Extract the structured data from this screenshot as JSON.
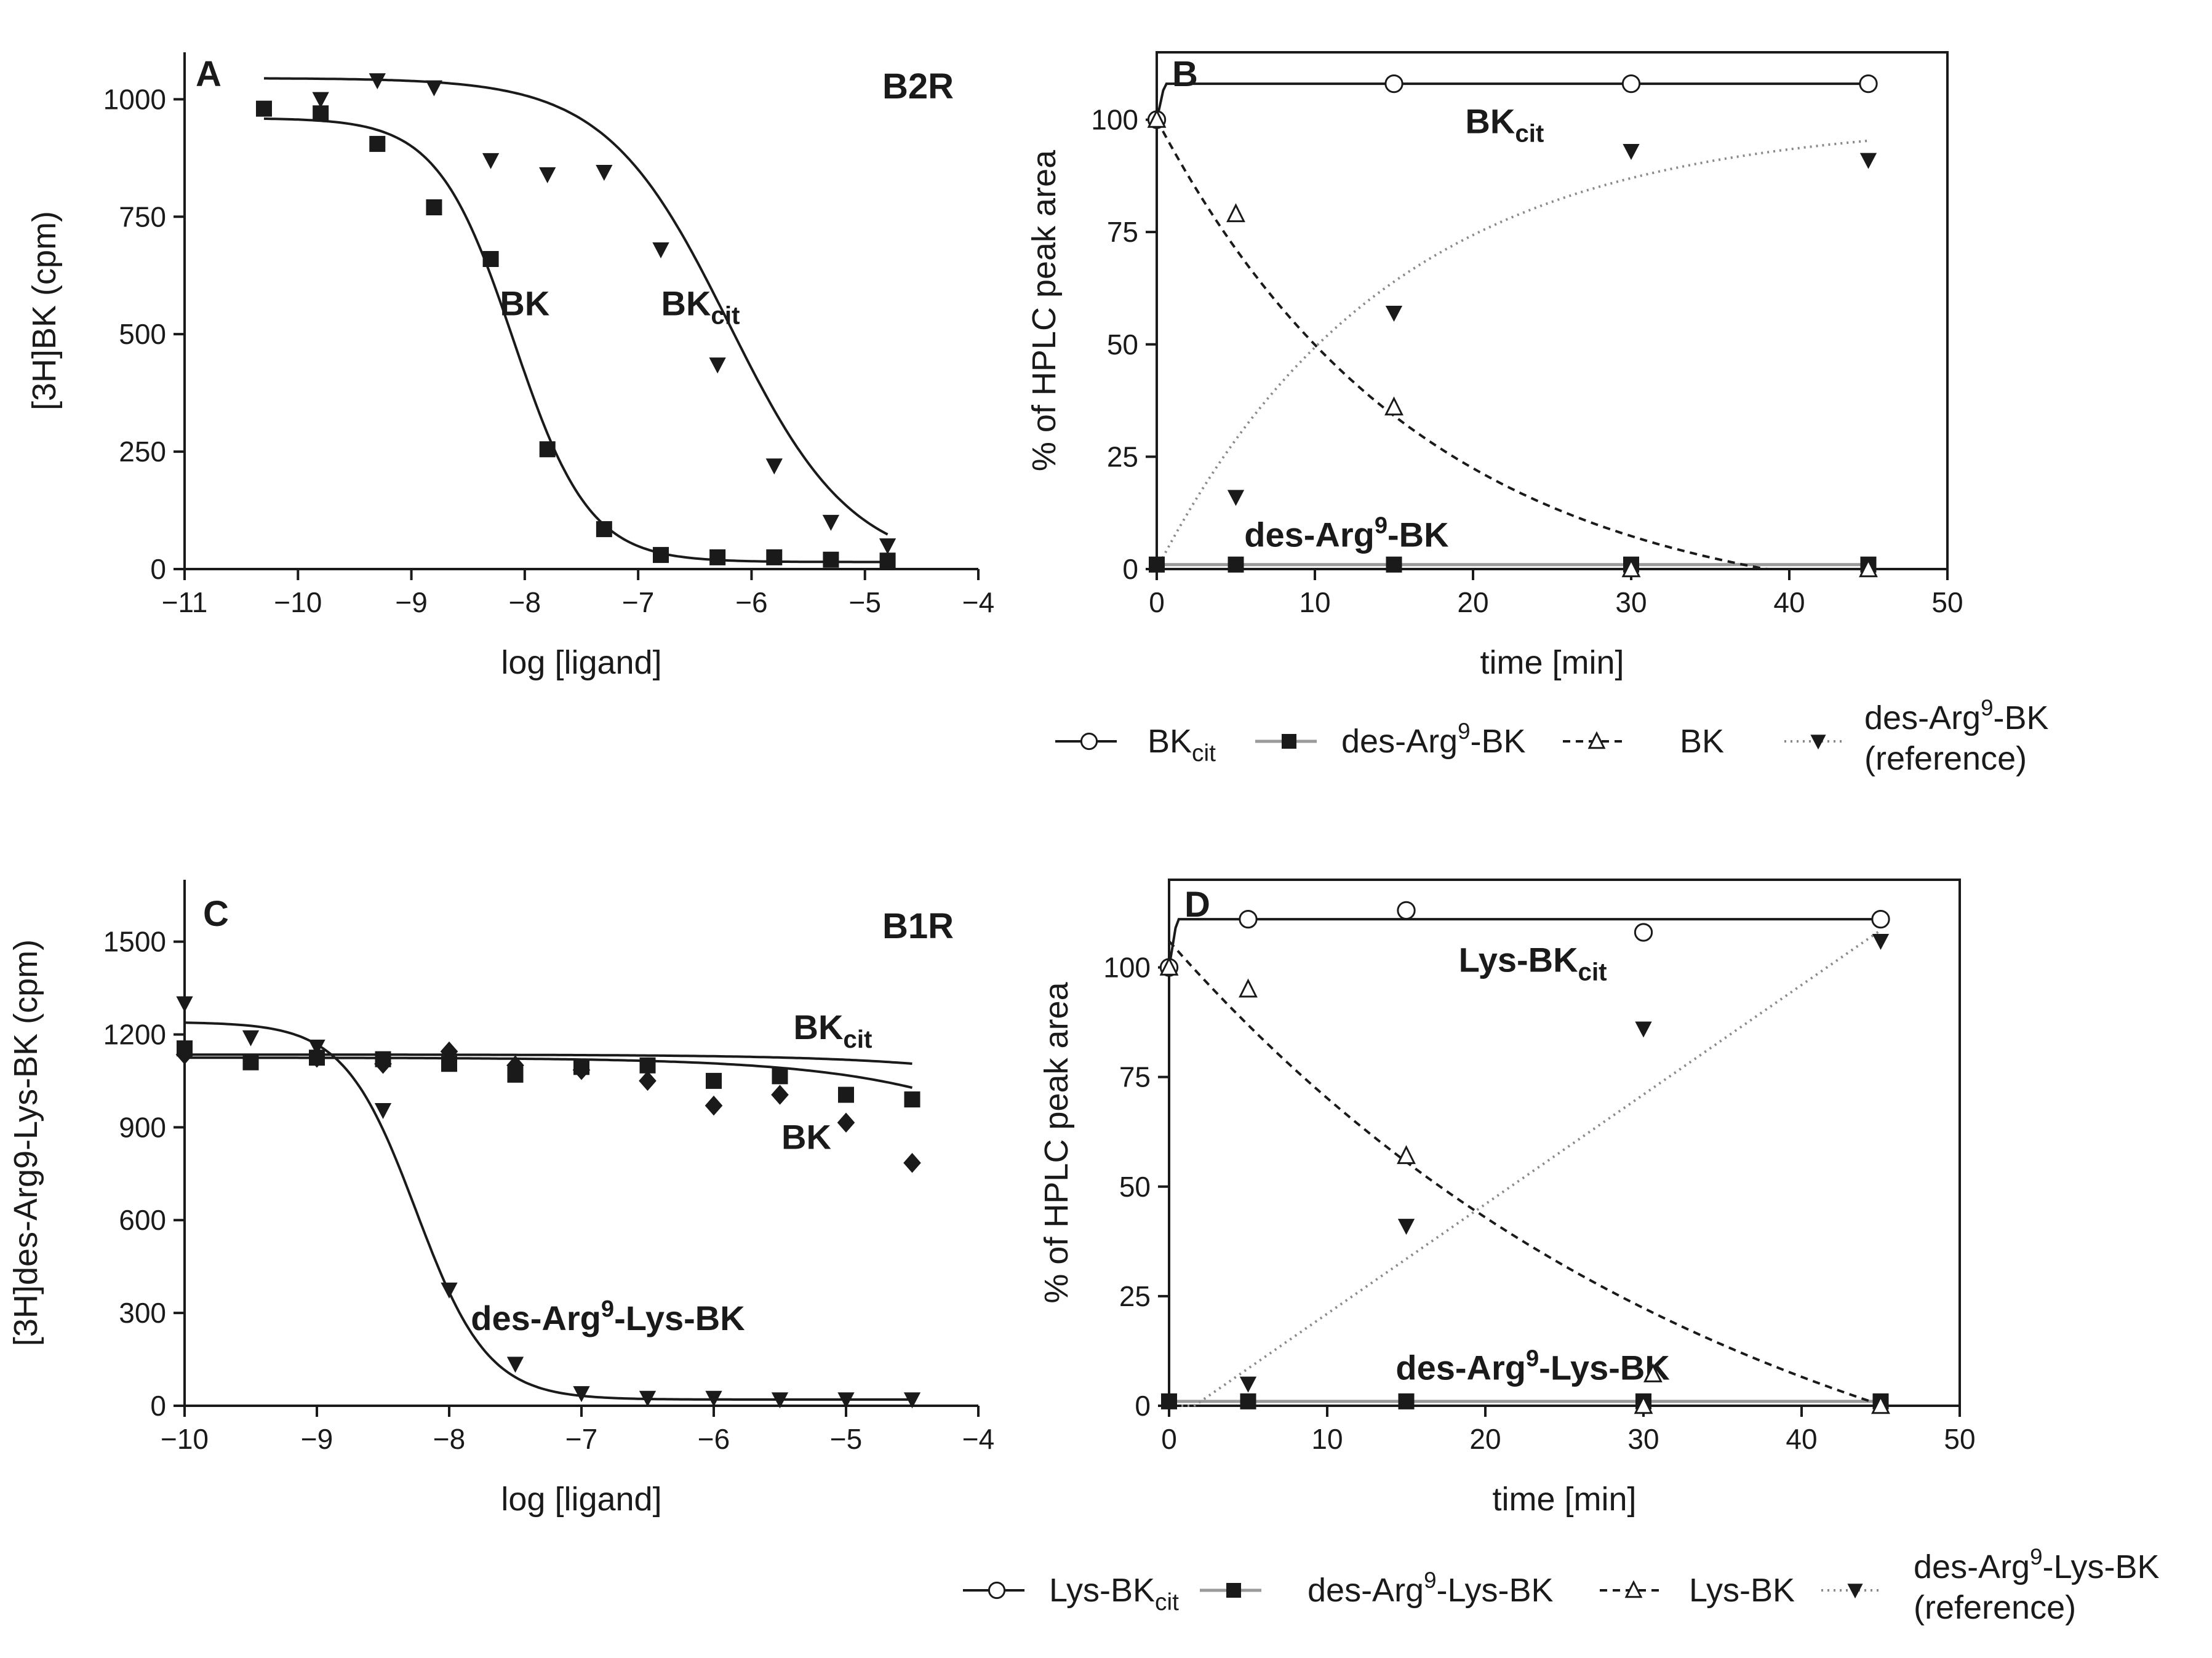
{
  "chart_data": [
    {
      "id": "A",
      "type": "scatter",
      "panel_letter": "A",
      "tag": "B2R",
      "xlabel": "log [ligand]",
      "ylabel": "[3H]BK (cpm)",
      "xlim": [
        -11,
        -4
      ],
      "ylim": [
        0,
        1100
      ],
      "xticks": [
        -11,
        -10,
        -9,
        -8,
        -7,
        -6,
        -5,
        -4
      ],
      "yticks": [
        0,
        250,
        500,
        750,
        1000
      ],
      "series": [
        {
          "name": "BK",
          "marker": "square",
          "x": [
            -10.3,
            -9.8,
            -9.3,
            -8.8,
            -8.3,
            -7.8,
            -7.3,
            -6.8,
            -6.3,
            -5.8,
            -5.3,
            -4.8
          ],
          "y": [
            980,
            970,
            905,
            770,
            660,
            255,
            85,
            30,
            25,
            25,
            20,
            18
          ],
          "fit": {
            "top": 960,
            "bottom": 15,
            "logec50": -8.1,
            "hill": 1.3,
            "from": -10.3,
            "to": -4.8
          }
        },
        {
          "name": "BKcit",
          "marker": "triangle-down",
          "x": [
            -9.8,
            -9.3,
            -8.8,
            -8.3,
            -7.8,
            -7.3,
            -6.8,
            -6.3,
            -5.8,
            -5.3,
            -4.8
          ],
          "y": [
            1000,
            1040,
            1025,
            870,
            840,
            845,
            680,
            435,
            220,
            100,
            50
          ],
          "fit": {
            "top": 1045,
            "bottom": 0,
            "logec50": -6.2,
            "hill": 0.8,
            "from": -10.3,
            "to": -4.8
          }
        }
      ],
      "annotations": [
        {
          "text": "BK",
          "sub": "",
          "x": -8.0,
          "y": 540
        },
        {
          "text": "BK",
          "sub": "cit",
          "x": -6.45,
          "y": 540
        }
      ]
    },
    {
      "id": "B",
      "type": "line",
      "panel_letter": "B",
      "xlabel": "time [min]",
      "ylabel": "% of HPLC peak area",
      "xlim": [
        0,
        50
      ],
      "ylim": [
        0,
        115
      ],
      "xticks": [
        0,
        10,
        20,
        30,
        40,
        50
      ],
      "yticks": [
        0,
        25,
        50,
        75,
        100
      ],
      "series": [
        {
          "name": "BKcit",
          "marker": "circle-open",
          "line": "solid",
          "x": [
            0,
            15,
            30,
            45
          ],
          "y": [
            100,
            108,
            108,
            108
          ],
          "fit": {
            "kind": "plateau",
            "start": 100,
            "plateau": 108,
            "rise_to": 0.5,
            "to": 45
          }
        },
        {
          "name": "des-Arg9-BK",
          "marker": "square",
          "line": "gray",
          "x": [
            0,
            5,
            15,
            30,
            45
          ],
          "y": [
            1,
            1,
            1,
            1,
            1
          ],
          "fit": {
            "kind": "flat",
            "value": 1,
            "from": 0,
            "to": 45
          }
        },
        {
          "name": "BK",
          "marker": "triangle-open",
          "line": "dashed",
          "x": [
            0,
            5,
            15,
            30,
            45
          ],
          "y": [
            100,
            79,
            36,
            0,
            0
          ],
          "fit": {
            "kind": "decay",
            "y0": 100,
            "k": 0.06,
            "floor": -11,
            "from": 0,
            "to": 45
          }
        },
        {
          "name": "des-Arg9-BK (reference)",
          "marker": "triangle-down",
          "line": "dotted",
          "x": [
            5,
            15,
            30,
            45
          ],
          "y": [
            16,
            57,
            93,
            91
          ],
          "fit": {
            "kind": "rise",
            "ymax": 100,
            "k": 0.068,
            "from": 0,
            "to": 45
          }
        }
      ],
      "annotations": [
        {
          "text": "BK",
          "sub": "cit",
          "x": 22,
          "y": 97
        },
        {
          "text": "des-Arg",
          "sup": "9",
          "tail": "-BK",
          "x": 12,
          "y": 5
        }
      ],
      "legend": [
        {
          "line": "solid",
          "marker": "circle-open",
          "label": "BK",
          "sub": "cit"
        },
        {
          "line": "gray",
          "marker": "square",
          "label": "des-Arg",
          "sup": "9",
          "tail": "-BK"
        },
        {
          "line": "dashed",
          "marker": "triangle-open",
          "label": "BK"
        },
        {
          "line": "dotted",
          "marker": "triangle-down",
          "label": "des-Arg",
          "sup": "9",
          "tail": "-BK",
          "line2": "(reference)"
        }
      ]
    },
    {
      "id": "C",
      "type": "scatter",
      "panel_letter": "C",
      "tag": "B1R",
      "xlabel": "log [ligand]",
      "ylabel": "[3H]des-Arg9-Lys-BK (cpm)",
      "xlim": [
        -10,
        -4
      ],
      "ylim": [
        0,
        1700
      ],
      "xticks": [
        -10,
        -9,
        -8,
        -7,
        -6,
        -5,
        -4
      ],
      "yticks": [
        0,
        300,
        600,
        900,
        1200,
        1500
      ],
      "series": [
        {
          "name": "BKcit",
          "marker": "square",
          "x": [
            -10,
            -9.5,
            -9,
            -8.5,
            -8,
            -7.5,
            -7,
            -6.5,
            -6,
            -5.5,
            -5,
            -4.5
          ],
          "y": [
            1155,
            1110,
            1125,
            1120,
            1105,
            1070,
            1095,
            1100,
            1050,
            1065,
            1005,
            990
          ],
          "fit": {
            "top": 1135,
            "bottom": 0,
            "logec50": -1.35,
            "hill": 0.5,
            "from": -10,
            "to": -4.5
          }
        },
        {
          "name": "BK",
          "marker": "diamond",
          "x": [
            -10,
            -9,
            -8.5,
            -8,
            -7.5,
            -7,
            -6.5,
            -6,
            -5.5,
            -5,
            -4.5
          ],
          "y": [
            1135,
            1125,
            1105,
            1145,
            1100,
            1085,
            1050,
            970,
            1005,
            915,
            785
          ],
          "fit": {
            "top": 1125,
            "bottom": 0,
            "logec50": -2.45,
            "hill": 0.5,
            "from": -10,
            "to": -4.5
          }
        },
        {
          "name": "des-Arg9-Lys-BK",
          "marker": "triangle-down",
          "x": [
            -10,
            -9.5,
            -9,
            -8.5,
            -8,
            -7.5,
            -7,
            -6.5,
            -6,
            -5.5,
            -5,
            -4.5
          ],
          "y": [
            1300,
            1190,
            1160,
            955,
            375,
            135,
            40,
            25,
            25,
            20,
            20,
            20
          ],
          "fit": {
            "top": 1240,
            "bottom": 20,
            "logec50": -8.25,
            "hill": 1.6,
            "from": -10,
            "to": -4.5
          }
        }
      ],
      "annotations": [
        {
          "text": "BK",
          "sub": "cit",
          "x": -5.1,
          "y": 1185
        },
        {
          "text": "BK",
          "sub": "",
          "x": -5.3,
          "y": 830
        },
        {
          "text": "des-Arg",
          "sup": "9",
          "tail": "-Lys-BK",
          "x": -6.8,
          "y": 245
        }
      ]
    },
    {
      "id": "D",
      "type": "line",
      "panel_letter": "D",
      "xlabel": "time [min]",
      "ylabel": "% of HPLC peak area",
      "xlim": [
        0,
        50
      ],
      "ylim": [
        0,
        120
      ],
      "xticks": [
        0,
        10,
        20,
        30,
        40,
        50
      ],
      "yticks": [
        0,
        25,
        50,
        75,
        100
      ],
      "series": [
        {
          "name": "Lys-BKcit",
          "marker": "circle-open",
          "line": "solid",
          "x": [
            0,
            5,
            15,
            30,
            45
          ],
          "y": [
            100,
            111,
            113,
            108,
            111
          ],
          "fit": {
            "kind": "plateau",
            "start": 100,
            "plateau": 111,
            "rise_to": 0.5,
            "to": 45
          }
        },
        {
          "name": "des-Arg9-Lys-BK",
          "marker": "square",
          "line": "gray",
          "x": [
            0,
            5,
            15,
            30,
            45
          ],
          "y": [
            1,
            1,
            1,
            1,
            1
          ],
          "fit": {
            "kind": "flat",
            "value": 1,
            "from": 0,
            "to": 45
          }
        },
        {
          "name": "Lys-BK",
          "marker": "triangle-open",
          "line": "dashed",
          "x": [
            0,
            5,
            15,
            30,
            45
          ],
          "y": [
            100,
            95,
            57,
            0,
            0
          ],
          "fit": {
            "kind": "decay",
            "y0": 106,
            "k": 0.0275,
            "floor": -43,
            "from": 0,
            "to": 45
          }
        },
        {
          "name": "des-Arg9-Lys-BK (reference)",
          "marker": "triangle-down",
          "line": "dotted",
          "x": [
            5,
            15,
            30,
            45
          ],
          "y": [
            5,
            41,
            86,
            106
          ],
          "fit": {
            "kind": "linear",
            "slope": 2.5,
            "intercept": -4,
            "from": 0,
            "to": 45
          }
        }
      ],
      "annotations": [
        {
          "text": "Lys-BK",
          "sub": "cit",
          "x": 23,
          "y": 99
        },
        {
          "text": "des-Arg",
          "sup": "9",
          "tail": "-Lys-BK",
          "x": 23,
          "y": 6
        },
        {
          "glyph": "triangle-open",
          "x": 30.6,
          "y": 7.2
        }
      ],
      "legend": [
        {
          "line": "solid",
          "marker": "circle-open",
          "label": "Lys-BK",
          "sub": "cit"
        },
        {
          "line": "gray",
          "marker": "square",
          "label": "des-Arg",
          "sup": "9",
          "tail": "-Lys-BK"
        },
        {
          "line": "dashed",
          "marker": "triangle-open",
          "label": "Lys-BK"
        },
        {
          "line": "dotted",
          "marker": "triangle-down",
          "label": "des-Arg",
          "sup": "9",
          "tail": "-Lys-BK",
          "line2": "(reference)"
        }
      ]
    }
  ]
}
